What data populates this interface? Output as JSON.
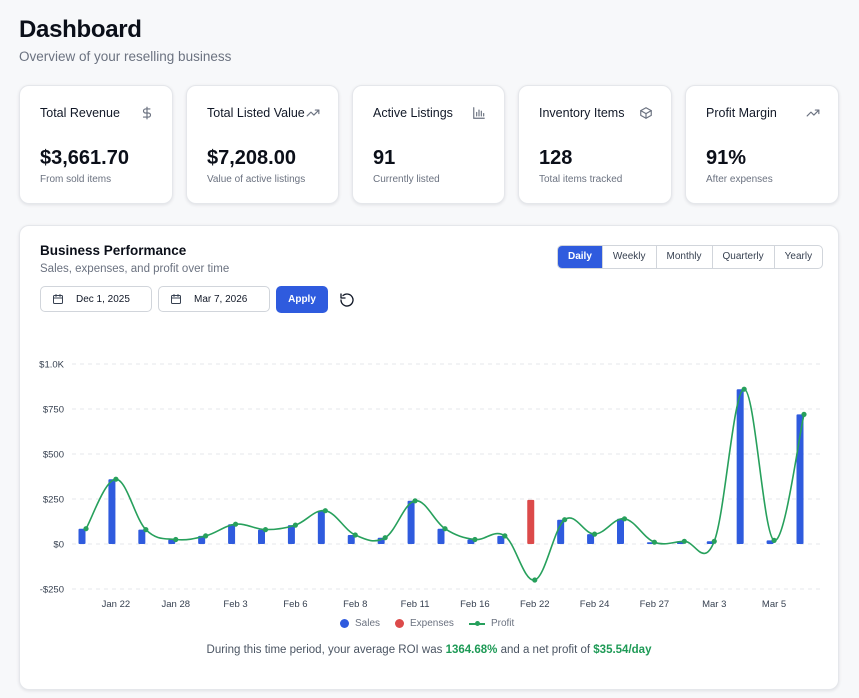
{
  "header": {
    "title": "Dashboard",
    "subtitle": "Overview of your reselling business"
  },
  "stats": [
    {
      "title": "Total Revenue",
      "value": "$3,661.70",
      "sub": "From sold items",
      "icon": "dollar-icon"
    },
    {
      "title": "Total Listed Value",
      "value": "$7,208.00",
      "sub": "Value of active listings",
      "icon": "trending-up-icon"
    },
    {
      "title": "Active Listings",
      "value": "91",
      "sub": "Currently listed",
      "icon": "bar-chart-icon"
    },
    {
      "title": "Inventory Items",
      "value": "128",
      "sub": "Total items tracked",
      "icon": "package-icon"
    },
    {
      "title": "Profit Margin",
      "value": "91%",
      "sub": "After expenses",
      "icon": "trending-up-icon"
    }
  ],
  "performance": {
    "title": "Business Performance",
    "subtitle": "Sales, expenses, and profit over time",
    "periods": [
      "Daily",
      "Weekly",
      "Monthly",
      "Quarterly",
      "Yearly"
    ],
    "active_period": "Daily",
    "start_date": "Dec 1, 2025",
    "end_date": "Mar 7, 2026",
    "apply_label": "Apply",
    "summary_prefix": "During this time period, your average ROI was ",
    "roi": "1364.68%",
    "summary_mid": " and a net profit of ",
    "net_profit": "$35.54/day"
  },
  "colors": {
    "sales": "#2f5bde",
    "expenses": "#dc4a4a",
    "profit": "#27a05c",
    "accent": "#2f5bde"
  },
  "chart_data": {
    "type": "bar",
    "y_tick_labels": [
      "$1.0K",
      "$750",
      "$500",
      "$250",
      "$0",
      "-$250"
    ],
    "y_ticks": [
      1000,
      750,
      500,
      250,
      0,
      -250
    ],
    "ylim": [
      -250,
      1000
    ],
    "grid": true,
    "x_tick_labels": [
      "Jan 22",
      "Jan 28",
      "Feb 3",
      "Feb 6",
      "Feb 8",
      "Feb 11",
      "Feb 16",
      "Feb 22",
      "Feb 24",
      "Feb 27",
      "Mar 3",
      "Mar 5"
    ],
    "series": [
      {
        "name": "Sales",
        "type": "bar",
        "values": [
          85,
          360,
          80,
          25,
          45,
          110,
          80,
          105,
          185,
          50,
          35,
          240,
          85,
          25,
          45,
          0,
          135,
          55,
          140,
          10,
          15,
          15,
          860,
          20,
          720
        ]
      },
      {
        "name": "Expenses",
        "type": "bar",
        "values": [
          0,
          0,
          0,
          0,
          0,
          0,
          0,
          0,
          0,
          0,
          0,
          0,
          0,
          0,
          0,
          245,
          0,
          0,
          0,
          0,
          0,
          0,
          0,
          0,
          0
        ]
      },
      {
        "name": "Profit",
        "type": "line",
        "values": [
          85,
          360,
          80,
          25,
          45,
          110,
          80,
          105,
          185,
          50,
          35,
          240,
          85,
          25,
          45,
          -200,
          135,
          55,
          140,
          10,
          15,
          15,
          860,
          20,
          720
        ]
      }
    ],
    "legend": "bottom-center"
  }
}
